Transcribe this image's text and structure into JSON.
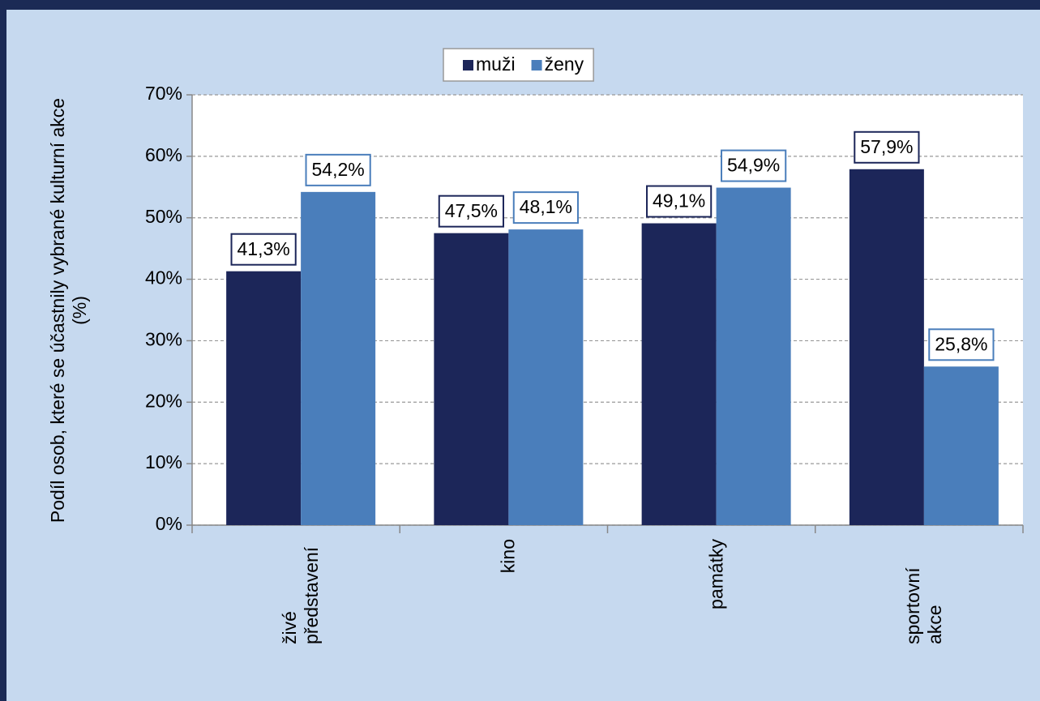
{
  "chart_data": {
    "type": "bar",
    "y_axis_title": "Podíl osob, které se účastnily vybrané kulturní akce (%)",
    "categories": [
      "živé představení",
      "kino",
      "památky",
      "sportovní akce"
    ],
    "series": [
      {
        "name": "muži",
        "color": "#1c2659",
        "values": [
          41.3,
          47.5,
          49.1,
          57.9
        ],
        "value_labels": [
          "41,3%",
          "47,5%",
          "49,1%",
          "57,9%"
        ]
      },
      {
        "name": "ženy",
        "color": "#4a7ebb",
        "values": [
          54.2,
          48.1,
          54.9,
          25.8
        ],
        "value_labels": [
          "54,2%",
          "48,1%",
          "54,9%",
          "25,8%"
        ]
      }
    ],
    "ylim": [
      0,
      70
    ],
    "yticks": [
      {
        "value": 0,
        "label": "0%"
      },
      {
        "value": 10,
        "label": "10%"
      },
      {
        "value": 20,
        "label": "20%"
      },
      {
        "value": 30,
        "label": "30%"
      },
      {
        "value": 40,
        "label": "40%"
      },
      {
        "value": 50,
        "label": "50%"
      },
      {
        "value": 60,
        "label": "60%"
      },
      {
        "value": 70,
        "label": "70%"
      }
    ],
    "grid": true,
    "legend": "top"
  }
}
